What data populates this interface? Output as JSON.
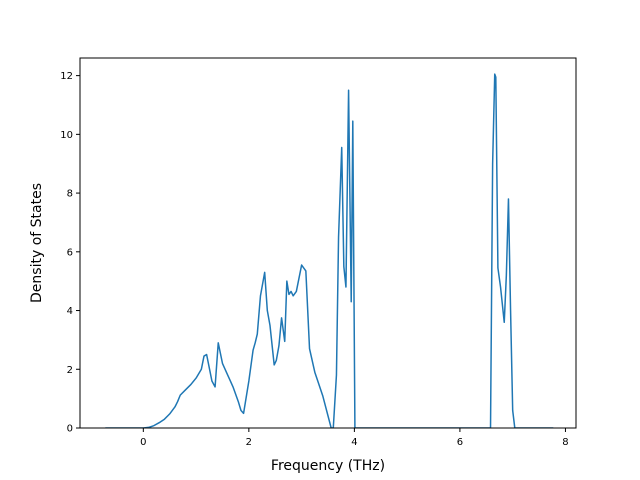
{
  "chart_data": {
    "type": "line",
    "title": "",
    "xlabel": "Frequency (THz)",
    "ylabel": "Density of States",
    "xlim": [
      -1.2,
      8.2
    ],
    "ylim": [
      0,
      12.6
    ],
    "xticks": [
      0,
      2,
      4,
      6,
      8
    ],
    "yticks": [
      0,
      2,
      4,
      6,
      8,
      10,
      12
    ],
    "xtick_labels": [
      "0",
      "2",
      "4",
      "6",
      "8"
    ],
    "ytick_labels": [
      "0",
      "2",
      "4",
      "6",
      "8",
      "10",
      "12"
    ],
    "grid": false,
    "legend": "none",
    "line_color": "#1f77b4",
    "series": [
      {
        "x": [
          -0.72,
          -0.4,
          0.0,
          0.1,
          0.2,
          0.3,
          0.4,
          0.5,
          0.6,
          0.65,
          0.7,
          0.8,
          0.9,
          1.0,
          1.1,
          1.15,
          1.2,
          1.3,
          1.36,
          1.42,
          1.5,
          1.6,
          1.7,
          1.8,
          1.85,
          1.9,
          2.0,
          2.08,
          2.12,
          2.16,
          2.22,
          2.3,
          2.35,
          2.4,
          2.48,
          2.52,
          2.57,
          2.62,
          2.68,
          2.72,
          2.76,
          2.8,
          2.84,
          2.9,
          3.0,
          3.08,
          3.15,
          3.25,
          3.4,
          3.56,
          3.6,
          3.66,
          3.7,
          3.76,
          3.8,
          3.84,
          3.89,
          3.94,
          3.97,
          4.01,
          4.02,
          4.3,
          5.5,
          6.58,
          6.62,
          6.66,
          6.68,
          6.72,
          6.77,
          6.84,
          6.88,
          6.92,
          6.96,
          7.0,
          7.04,
          7.08,
          7.3,
          7.77
        ],
        "y": [
          0,
          0,
          0,
          0.02,
          0.08,
          0.18,
          0.3,
          0.48,
          0.72,
          0.9,
          1.12,
          1.3,
          1.48,
          1.7,
          2.0,
          2.45,
          2.5,
          1.6,
          1.4,
          2.9,
          2.2,
          1.8,
          1.4,
          0.9,
          0.6,
          0.5,
          1.6,
          2.65,
          2.9,
          3.2,
          4.5,
          5.3,
          4.0,
          3.5,
          2.15,
          2.3,
          2.8,
          3.75,
          2.95,
          5.0,
          4.55,
          4.65,
          4.5,
          4.65,
          5.55,
          5.35,
          2.7,
          1.9,
          1.1,
          0.0,
          0.0,
          1.8,
          6.5,
          9.55,
          5.5,
          4.8,
          11.5,
          4.3,
          10.45,
          0.0,
          0.0,
          0.0,
          0.0,
          0.0,
          9.0,
          12.05,
          11.95,
          5.45,
          4.8,
          3.6,
          5.2,
          7.8,
          4.0,
          0.6,
          0.0,
          0.0,
          0.0,
          0.0
        ]
      }
    ]
  }
}
